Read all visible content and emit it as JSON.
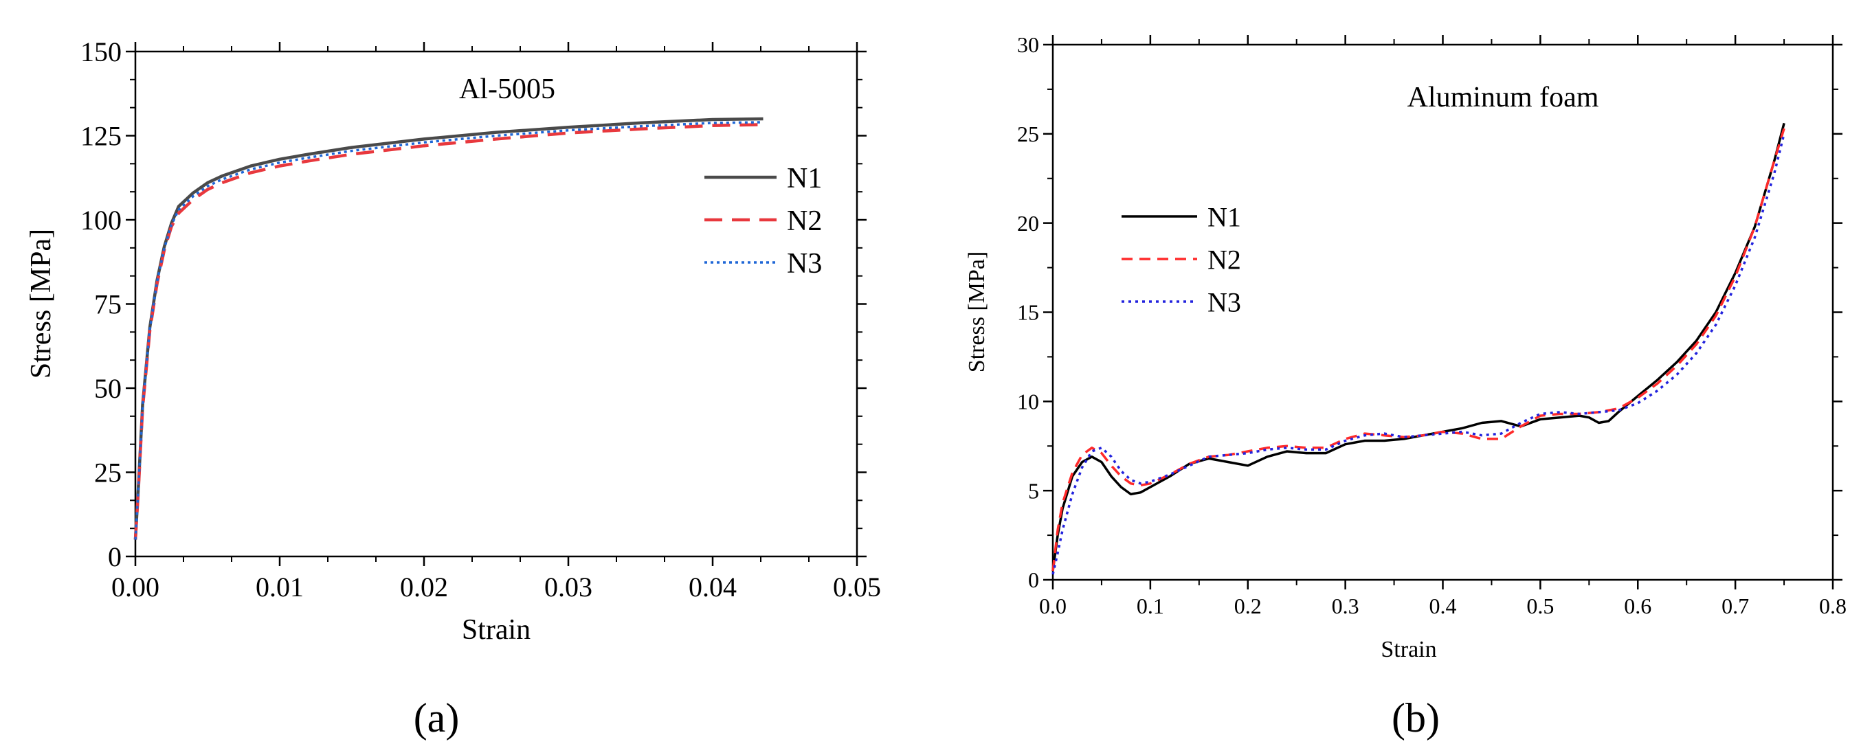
{
  "panels": {
    "a": {
      "label": "(a)"
    },
    "b": {
      "label": "(b)"
    }
  },
  "chart_data": [
    {
      "type": "line",
      "title": "Al-5005",
      "xlabel": "Strain",
      "ylabel": "Stress [MPa]",
      "xlim": [
        0,
        0.05
      ],
      "ylim": [
        0,
        150
      ],
      "xticks": [
        "0.00",
        "0.01",
        "0.02",
        "0.03",
        "0.04",
        "0.05"
      ],
      "yticks": [
        "0",
        "25",
        "50",
        "75",
        "100",
        "125",
        "150"
      ],
      "grid": false,
      "legend_position": "right",
      "series": [
        {
          "name": "N1",
          "color": "#4a4a4a",
          "style": "solid",
          "x": [
            0,
            0.0002,
            0.0005,
            0.001,
            0.0015,
            0.002,
            0.0025,
            0.003,
            0.0035,
            0.004,
            0.005,
            0.006,
            0.008,
            0.01,
            0.012,
            0.015,
            0.02,
            0.025,
            0.03,
            0.035,
            0.04,
            0.0435
          ],
          "y": [
            5,
            20,
            45,
            68,
            82,
            92,
            99,
            104,
            106,
            108,
            111,
            113,
            116,
            118,
            119.5,
            121.5,
            124,
            126,
            127.5,
            128.8,
            129.8,
            130
          ]
        },
        {
          "name": "N2",
          "color": "#e8383d",
          "style": "dashed",
          "x": [
            0,
            0.0002,
            0.0005,
            0.001,
            0.0015,
            0.002,
            0.0025,
            0.003,
            0.0035,
            0.004,
            0.005,
            0.006,
            0.008,
            0.01,
            0.012,
            0.015,
            0.02,
            0.025,
            0.03,
            0.035,
            0.04,
            0.0435
          ],
          "y": [
            5,
            19,
            44,
            67,
            81,
            91,
            98,
            102,
            104,
            106,
            109,
            111,
            114,
            116,
            117.5,
            119.5,
            122,
            124,
            125.8,
            127,
            128,
            128.3
          ]
        },
        {
          "name": "N3",
          "color": "#1e66d6",
          "style": "dotted",
          "x": [
            0,
            0.0002,
            0.0005,
            0.001,
            0.0015,
            0.002,
            0.0025,
            0.003,
            0.0035,
            0.004,
            0.005,
            0.006,
            0.008,
            0.01,
            0.012,
            0.015,
            0.02,
            0.025,
            0.03,
            0.035,
            0.04,
            0.0435
          ],
          "y": [
            5,
            19.5,
            44.5,
            67.5,
            81.5,
            91.5,
            98.5,
            103,
            105,
            107,
            110,
            112,
            115,
            117,
            118.5,
            120.5,
            123,
            125,
            126.6,
            127.8,
            128.8,
            129
          ]
        }
      ]
    },
    {
      "type": "line",
      "title": "Aluminum foam",
      "xlabel": "Strain",
      "ylabel": "Stress [MPa]",
      "xlim": [
        0,
        0.8
      ],
      "ylim": [
        0,
        30
      ],
      "xticks": [
        "0.0",
        "0.1",
        "0.2",
        "0.3",
        "0.4",
        "0.5",
        "0.6",
        "0.7",
        "0.8"
      ],
      "yticks": [
        "0",
        "5",
        "10",
        "15",
        "20",
        "25",
        "30"
      ],
      "grid": false,
      "legend_position": "upper-left",
      "series": [
        {
          "name": "N1",
          "color": "#000000",
          "style": "solid",
          "x": [
            0,
            0.005,
            0.01,
            0.02,
            0.03,
            0.04,
            0.05,
            0.06,
            0.07,
            0.08,
            0.09,
            0.1,
            0.12,
            0.14,
            0.16,
            0.18,
            0.2,
            0.22,
            0.24,
            0.26,
            0.28,
            0.3,
            0.32,
            0.34,
            0.36,
            0.38,
            0.4,
            0.42,
            0.44,
            0.46,
            0.48,
            0.5,
            0.52,
            0.54,
            0.55,
            0.56,
            0.57,
            0.58,
            0.6,
            0.62,
            0.64,
            0.66,
            0.68,
            0.7,
            0.72,
            0.74,
            0.75
          ],
          "y": [
            0.5,
            2.5,
            4,
            5.8,
            6.6,
            6.9,
            6.6,
            5.8,
            5.2,
            4.8,
            4.9,
            5.2,
            5.8,
            6.5,
            6.8,
            6.6,
            6.4,
            6.9,
            7.2,
            7.1,
            7.1,
            7.6,
            7.8,
            7.8,
            7.9,
            8.1,
            8.3,
            8.5,
            8.8,
            8.9,
            8.6,
            9.0,
            9.1,
            9.2,
            9.1,
            8.8,
            8.9,
            9.4,
            10.3,
            11.2,
            12.2,
            13.4,
            15.0,
            17.2,
            19.8,
            23.5,
            25.6
          ]
        },
        {
          "name": "N2",
          "color": "#ff2a2a",
          "style": "dashed",
          "x": [
            0,
            0.005,
            0.01,
            0.02,
            0.03,
            0.04,
            0.05,
            0.06,
            0.07,
            0.08,
            0.09,
            0.1,
            0.12,
            0.14,
            0.16,
            0.18,
            0.2,
            0.22,
            0.24,
            0.26,
            0.28,
            0.3,
            0.32,
            0.34,
            0.36,
            0.38,
            0.4,
            0.42,
            0.44,
            0.46,
            0.48,
            0.5,
            0.52,
            0.54,
            0.56,
            0.58,
            0.6,
            0.62,
            0.64,
            0.66,
            0.68,
            0.7,
            0.72,
            0.74,
            0.75
          ],
          "y": [
            0.5,
            2.8,
            4.3,
            6.0,
            7.0,
            7.4,
            7.1,
            6.4,
            5.8,
            5.4,
            5.3,
            5.4,
            5.9,
            6.5,
            6.9,
            7.0,
            7.2,
            7.4,
            7.5,
            7.4,
            7.4,
            7.9,
            8.2,
            8.1,
            8.0,
            8.1,
            8.3,
            8.2,
            7.9,
            7.9,
            8.6,
            9.2,
            9.3,
            9.3,
            9.4,
            9.6,
            10.2,
            11.0,
            12.0,
            13.2,
            14.8,
            17.0,
            19.8,
            23.5,
            25.3
          ]
        },
        {
          "name": "N3",
          "color": "#2222dd",
          "style": "dotted",
          "x": [
            0,
            0.005,
            0.01,
            0.02,
            0.03,
            0.04,
            0.05,
            0.06,
            0.07,
            0.08,
            0.09,
            0.1,
            0.12,
            0.14,
            0.16,
            0.18,
            0.2,
            0.22,
            0.24,
            0.26,
            0.28,
            0.3,
            0.32,
            0.34,
            0.36,
            0.38,
            0.4,
            0.42,
            0.44,
            0.46,
            0.48,
            0.5,
            0.52,
            0.54,
            0.56,
            0.58,
            0.6,
            0.62,
            0.64,
            0.66,
            0.68,
            0.7,
            0.72,
            0.74,
            0.75
          ],
          "y": [
            0.3,
            1.5,
            2.8,
            4.8,
            6.3,
            7.2,
            7.4,
            6.9,
            6.1,
            5.6,
            5.4,
            5.5,
            5.9,
            6.4,
            6.9,
            7.0,
            7.1,
            7.3,
            7.4,
            7.3,
            7.3,
            7.8,
            8.1,
            8.2,
            8.0,
            8.1,
            8.2,
            8.3,
            8.1,
            8.2,
            8.8,
            9.3,
            9.4,
            9.3,
            9.4,
            9.5,
            9.9,
            10.6,
            11.5,
            12.7,
            14.3,
            16.5,
            19.2,
            22.8,
            25.0
          ]
        }
      ]
    }
  ]
}
